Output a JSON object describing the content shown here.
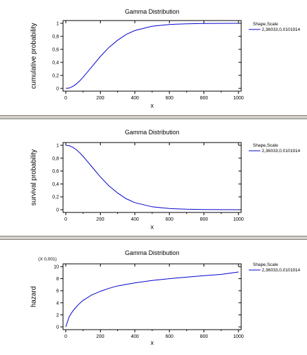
{
  "colors": {
    "series": "#0000cc",
    "axis": "#000000",
    "divider": "#d4d0c8"
  },
  "chart_data": [
    {
      "type": "line",
      "title": "Gamma Distribution",
      "xlabel": "x",
      "ylabel": "cumulative probability",
      "multiplier": "",
      "xlim": [
        0,
        1000
      ],
      "ylim": [
        0,
        1
      ],
      "xticks": [
        "0",
        "200",
        "400",
        "600",
        "800",
        "1000"
      ],
      "yticks": [
        "0",
        "0,2",
        "0,4",
        "0,6",
        "0,8",
        "1"
      ],
      "legend": {
        "title": "Shape,Scale",
        "placement": "top-right"
      },
      "series": [
        {
          "name": "2,36033,0,0101914",
          "x": [
            0,
            20,
            40,
            60,
            80,
            100,
            150,
            200,
            250,
            300,
            350,
            400,
            500,
            600,
            700,
            800,
            1000
          ],
          "values": [
            0,
            0.006,
            0.03,
            0.065,
            0.115,
            0.17,
            0.33,
            0.49,
            0.63,
            0.74,
            0.83,
            0.89,
            0.955,
            0.982,
            0.993,
            0.997,
            1.0
          ]
        }
      ]
    },
    {
      "type": "line",
      "title": "Gamma Distribution",
      "xlabel": "x",
      "ylabel": "survival probability",
      "multiplier": "",
      "xlim": [
        0,
        1000
      ],
      "ylim": [
        0,
        1
      ],
      "xticks": [
        "0",
        "200",
        "400",
        "600",
        "800",
        "1000"
      ],
      "yticks": [
        "0",
        "0,2",
        "0,4",
        "0,6",
        "0,8",
        "1"
      ],
      "legend": {
        "title": "Shape,Scale",
        "placement": "top-right"
      },
      "series": [
        {
          "name": "2,36033,0,0101914",
          "x": [
            0,
            20,
            40,
            60,
            80,
            100,
            150,
            200,
            250,
            300,
            350,
            400,
            500,
            600,
            700,
            800,
            1000
          ],
          "values": [
            1.0,
            0.994,
            0.97,
            0.935,
            0.885,
            0.83,
            0.67,
            0.51,
            0.37,
            0.26,
            0.17,
            0.11,
            0.045,
            0.018,
            0.007,
            0.003,
            0.0
          ]
        }
      ]
    },
    {
      "type": "line",
      "title": "Gamma Distribution",
      "xlabel": "x",
      "ylabel": "hazard",
      "multiplier": "(X 0,001)",
      "xlim": [
        0,
        1000
      ],
      "ylim": [
        0,
        10
      ],
      "xticks": [
        "0",
        "200",
        "400",
        "600",
        "800",
        "1000"
      ],
      "yticks": [
        "0",
        "2",
        "4",
        "6",
        "8",
        "10"
      ],
      "legend": {
        "title": "Shape,Scale",
        "placement": "top-right"
      },
      "series": [
        {
          "name": "2,36033,0,0101914",
          "x": [
            0,
            20,
            40,
            60,
            80,
            100,
            150,
            200,
            250,
            300,
            400,
            500,
            600,
            700,
            800,
            900,
            1000
          ],
          "values": [
            0,
            1.7,
            2.6,
            3.3,
            3.9,
            4.4,
            5.3,
            5.9,
            6.4,
            6.8,
            7.3,
            7.7,
            8.0,
            8.25,
            8.5,
            8.7,
            9.1
          ]
        }
      ]
    }
  ]
}
